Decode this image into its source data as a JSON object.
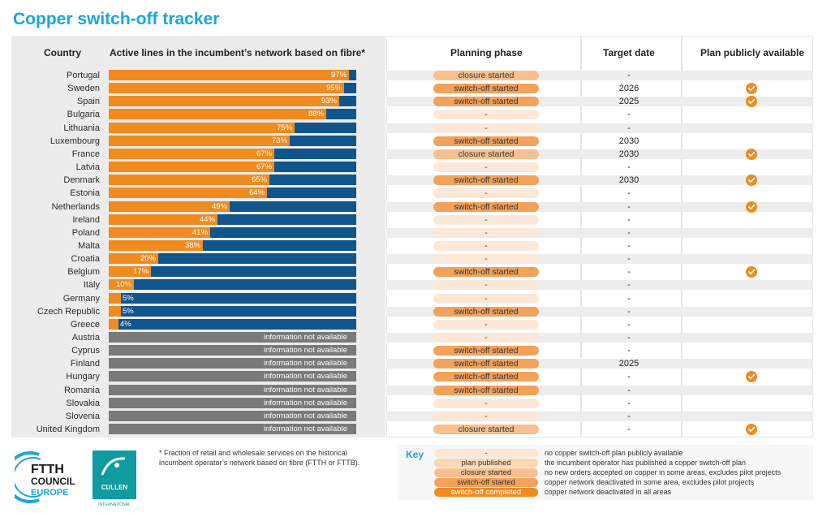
{
  "title": "Copper switch-off tracker",
  "headers": {
    "country": "Country",
    "active_lines": "Active lines in the incumbent’s network based on fibre*",
    "planning_phase": "Planning phase",
    "target_date": "Target date",
    "plan_public": "Plan publicly available"
  },
  "colors": {
    "fibre": "#f08b1f",
    "remaining": "#10558c",
    "not_available": "#7a7a7a",
    "title": "#1aa6d9",
    "phase_none": "#fbe8d8",
    "phase_plan_published": "#fbd7b2",
    "phase_closure_started": "#f7c08e",
    "phase_switch_off_started": "#f2a25a",
    "phase_switch_off_completed": "#f08b1f"
  },
  "na_text": "information not available",
  "chart_data": {
    "type": "bar",
    "orientation": "horizontal",
    "stacked": true,
    "xlim": [
      0,
      100
    ],
    "unit": "%",
    "categories": [
      "Portugal",
      "Sweden",
      "Spain",
      "Bulgaria",
      "Lithuania",
      "Luxembourg",
      "France",
      "Latvia",
      "Denmark",
      "Estonia",
      "Netherlands",
      "Ireland",
      "Poland",
      "Malta",
      "Croatia",
      "Belgium",
      "Italy",
      "Germany",
      "Czech Republic",
      "Greece",
      "Austria",
      "Cyprus",
      "Finland",
      "Hungary",
      "Romania",
      "Slovakia",
      "Slovenia",
      "United Kingdom"
    ],
    "series": [
      {
        "values": [
          97,
          95,
          93,
          88,
          75,
          73,
          67,
          67,
          65,
          64,
          49,
          44,
          41,
          38,
          20,
          17,
          10,
          5,
          5,
          4,
          null,
          null,
          null,
          null,
          null,
          null,
          null,
          null
        ]
      }
    ],
    "labels": [
      "97%",
      "95%",
      "93%",
      "88%",
      "75%",
      "73%",
      "67%",
      "67%",
      "65%",
      "64%",
      "49%",
      "44%",
      "41%",
      "38%",
      "20%",
      "17%",
      "10%",
      "5%",
      "5%",
      "4%",
      "",
      "",
      "",
      "",
      "",
      "",
      "",
      ""
    ]
  },
  "rows": [
    {
      "phase": "closure started",
      "phase_key": "closure",
      "target": "-",
      "plan": false
    },
    {
      "phase": "switch-off started",
      "phase_key": "switch",
      "target": "2026",
      "plan": true
    },
    {
      "phase": "switch-off started",
      "phase_key": "switch",
      "target": "2025",
      "plan": true
    },
    {
      "phase": "-",
      "phase_key": "none",
      "target": "-",
      "plan": false
    },
    {
      "phase": "-",
      "phase_key": "none",
      "target": "-",
      "plan": false
    },
    {
      "phase": "switch-off started",
      "phase_key": "switch",
      "target": "2030",
      "plan": false
    },
    {
      "phase": "closure started",
      "phase_key": "closure",
      "target": "2030",
      "plan": true
    },
    {
      "phase": "-",
      "phase_key": "none",
      "target": "-",
      "plan": false
    },
    {
      "phase": "switch-off started",
      "phase_key": "switch",
      "target": "2030",
      "plan": true
    },
    {
      "phase": "-",
      "phase_key": "none",
      "target": "-",
      "plan": false
    },
    {
      "phase": "switch-off started",
      "phase_key": "switch",
      "target": "-",
      "plan": true
    },
    {
      "phase": "-",
      "phase_key": "none",
      "target": "-",
      "plan": false
    },
    {
      "phase": "-",
      "phase_key": "none",
      "target": "-",
      "plan": false
    },
    {
      "phase": "-",
      "phase_key": "none",
      "target": "-",
      "plan": false
    },
    {
      "phase": "-",
      "phase_key": "none",
      "target": "-",
      "plan": false
    },
    {
      "phase": "switch-off started",
      "phase_key": "switch",
      "target": "-",
      "plan": true
    },
    {
      "phase": "-",
      "phase_key": "none",
      "target": "-",
      "plan": false
    },
    {
      "phase": "-",
      "phase_key": "none",
      "target": "-",
      "plan": false
    },
    {
      "phase": "switch-off started",
      "phase_key": "switch",
      "target": "-",
      "plan": false
    },
    {
      "phase": "-",
      "phase_key": "none",
      "target": "-",
      "plan": false
    },
    {
      "phase": "-",
      "phase_key": "none",
      "target": "-",
      "plan": false
    },
    {
      "phase": "switch-off started",
      "phase_key": "switch",
      "target": "-",
      "plan": false
    },
    {
      "phase": "switch-off started",
      "phase_key": "switch",
      "target": "2025",
      "plan": false
    },
    {
      "phase": "switch-off started",
      "phase_key": "switch",
      "target": "-",
      "plan": true
    },
    {
      "phase": "switch-off started",
      "phase_key": "switch",
      "target": "-",
      "plan": false
    },
    {
      "phase": "-",
      "phase_key": "none",
      "target": "-",
      "plan": false
    },
    {
      "phase": "-",
      "phase_key": "none",
      "target": "-",
      "plan": false
    },
    {
      "phase": "closure started",
      "phase_key": "closure",
      "target": "-",
      "plan": true
    }
  ],
  "footnote": "* Fraction of retail and wholesale services on the historical incumbent operator’s network based on fibre (FTTH or FTTB).",
  "key": {
    "title": "Key",
    "items": [
      {
        "label": "-",
        "color_key": "none",
        "desc": "no copper switch-off plan publicly available"
      },
      {
        "label": "plan published",
        "color_key": "plan",
        "desc": "the incumbent operator has published a copper switch-off plan"
      },
      {
        "label": "closure started",
        "color_key": "closure",
        "desc": "no new orders accepted on copper in some areas, excludes pilot projects"
      },
      {
        "label": "switch-off started",
        "color_key": "switch",
        "desc": "copper network deactivated in some area, excludes pilot projects"
      },
      {
        "label": "switch-off completed",
        "color_key": "completed",
        "desc": "copper network deactivated in all areas"
      }
    ]
  },
  "logos": {
    "ftth_line1": "FTTH",
    "ftth_line2": "COUNCIL",
    "ftth_line3": "EUROPE",
    "cullen_name": "CULLEN",
    "cullen_sub": "INTERNATIONAL"
  }
}
